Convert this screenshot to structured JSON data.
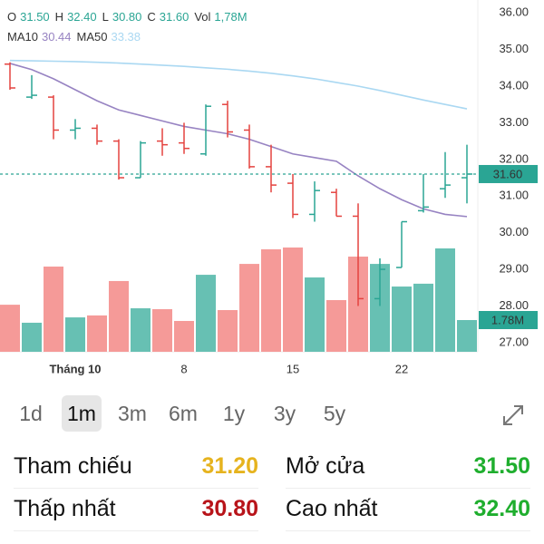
{
  "chart_data": {
    "type": "ohlc",
    "header": [
      {
        "label": "O",
        "value": "31.50"
      },
      {
        "label": "H",
        "value": "32.40"
      },
      {
        "label": "L",
        "value": "30.80"
      },
      {
        "label": "C",
        "value": "31.60"
      },
      {
        "label": "Vol",
        "value": "1,78M"
      }
    ],
    "header_value_color": "#2aa594",
    "categories": [
      null,
      null,
      null,
      "Tháng 10",
      null,
      null,
      null,
      null,
      "8",
      null,
      null,
      null,
      null,
      "15",
      null,
      null,
      null,
      null,
      "22",
      null,
      null,
      null
    ],
    "ohlc": {
      "open": [
        34.6,
        33.7,
        33.7,
        32.8,
        32.85,
        32.5,
        31.5,
        32.5,
        32.45,
        32.15,
        33.5,
        32.8,
        31.8,
        31.35,
        30.5,
        31.1,
        30.45,
        28.2,
        29.05,
        30.6,
        31.2,
        31.5
      ],
      "high": [
        34.65,
        34.3,
        33.75,
        33.1,
        32.95,
        32.55,
        32.5,
        32.85,
        33.0,
        33.5,
        33.6,
        32.95,
        32.4,
        31.6,
        31.4,
        31.2,
        30.8,
        29.3,
        30.3,
        31.6,
        32.2,
        32.4
      ],
      "low": [
        33.9,
        33.65,
        32.55,
        32.55,
        32.4,
        31.45,
        31.5,
        32.1,
        32.15,
        32.1,
        32.6,
        31.75,
        31.1,
        30.4,
        30.3,
        30.45,
        28.0,
        28.0,
        29.05,
        30.55,
        30.95,
        30.8
      ],
      "close": [
        33.95,
        33.75,
        32.8,
        32.85,
        32.5,
        31.5,
        32.45,
        32.4,
        32.3,
        33.45,
        32.75,
        31.8,
        31.3,
        30.5,
        31.15,
        30.45,
        28.2,
        29.0,
        30.3,
        30.7,
        31.3,
        31.6
      ]
    },
    "up_color": "#2aa594",
    "down_color": "#e4433f",
    "volume": [
      2.64,
      1.63,
      4.78,
      1.93,
      2.04,
      3.97,
      2.44,
      2.39,
      1.73,
      4.32,
      2.34,
      4.93,
      5.75,
      5.85,
      4.17,
      2.9,
      5.34,
      4.93,
      3.66,
      3.82,
      5.8,
      1.78
    ],
    "volume_up_color": "#67c0b3",
    "volume_down_color": "#f59a98",
    "vol_ylim": [
      0,
      7.63
    ],
    "series": [
      {
        "name": "MA10",
        "color": "#9783c2",
        "values": [
          34.62,
          34.45,
          34.2,
          33.9,
          33.6,
          33.35,
          33.2,
          33.05,
          32.9,
          32.8,
          32.7,
          32.55,
          32.35,
          32.15,
          32.05,
          31.95,
          31.55,
          31.2,
          30.9,
          30.65,
          30.5,
          30.44
        ]
      },
      {
        "name": "MA50",
        "color": "#aad8f2",
        "values": [
          34.7,
          34.69,
          34.68,
          34.67,
          34.65,
          34.63,
          34.6,
          34.57,
          34.54,
          34.5,
          34.46,
          34.41,
          34.35,
          34.28,
          34.2,
          34.1,
          34.0,
          33.88,
          33.75,
          33.62,
          33.5,
          33.38
        ]
      }
    ],
    "ylim": [
      26.75,
      36.35
    ],
    "yticks": [
      {
        "value": 36,
        "label": "36.00"
      },
      {
        "value": 35,
        "label": "35.00"
      },
      {
        "value": 34,
        "label": "34.00"
      },
      {
        "value": 33,
        "label": "33.00"
      },
      {
        "value": 32,
        "label": "32.00"
      },
      {
        "value": 31,
        "label": "31.00"
      },
      {
        "value": 30,
        "label": "30.00"
      },
      {
        "value": 29,
        "label": "29.00"
      },
      {
        "value": 28,
        "label": "28.00"
      },
      {
        "value": 27,
        "label": "27.00"
      }
    ],
    "last_price": {
      "value": 31.6,
      "label": "31.60"
    },
    "last_volume": {
      "value": 1.78,
      "label": "1.78M"
    }
  },
  "tabs": {
    "items": [
      "1d",
      "1m",
      "3m",
      "6m",
      "1y",
      "3y",
      "5y"
    ],
    "selected": 1
  },
  "stats": [
    {
      "label": "Tham chiếu",
      "value": "31.20",
      "color": "#e6b31e"
    },
    {
      "label": "Mở cửa",
      "value": "31.50",
      "color": "#1fae2e"
    },
    {
      "label": "Thấp nhất",
      "value": "30.80",
      "color": "#b8141a"
    },
    {
      "label": "Cao nhất",
      "value": "32.40",
      "color": "#1fae2e"
    }
  ]
}
